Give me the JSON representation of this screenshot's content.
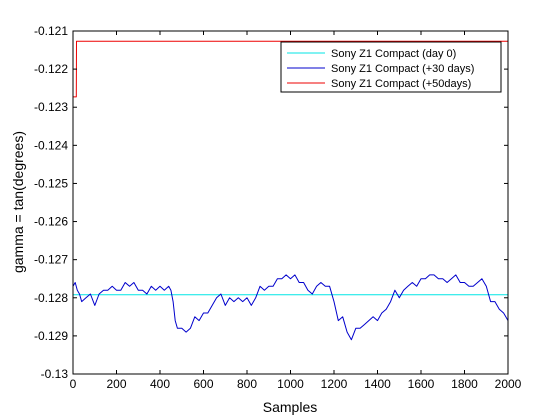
{
  "chart_data": {
    "type": "line",
    "title": "",
    "xlabel": "Samples",
    "ylabel": "gamma = tan(degrees)",
    "xlim": [
      0,
      2000
    ],
    "ylim": [
      -0.13,
      -0.121
    ],
    "x_ticks": [
      0,
      200,
      400,
      600,
      800,
      1000,
      1200,
      1400,
      1600,
      1800,
      2000
    ],
    "y_ticks": [
      -0.13,
      -0.129,
      -0.128,
      -0.127,
      -0.126,
      -0.125,
      -0.124,
      -0.123,
      -0.122,
      -0.121
    ],
    "x_tick_labels": [
      "0",
      "200",
      "400",
      "600",
      "800",
      "1000",
      "1200",
      "1400",
      "1600",
      "1800",
      "2000"
    ],
    "y_tick_labels": [
      "-0.13",
      "-0.129",
      "-0.128",
      "-0.127",
      "-0.126",
      "-0.125",
      "-0.124",
      "-0.123",
      "-0.122",
      "-0.121"
    ],
    "grid": false,
    "legend_position": "top-right",
    "series": [
      {
        "name": "Sony Z1 Compact (day 0)",
        "color": "#00e5e5",
        "x": [
          0,
          2000
        ],
        "y": [
          -0.12792,
          -0.12792
        ]
      },
      {
        "name": "Sony Z1 Compact (+30 days)",
        "color": "#0000cc",
        "x": [
          0,
          10,
          20,
          30,
          40,
          60,
          80,
          100,
          120,
          140,
          160,
          180,
          200,
          220,
          240,
          260,
          280,
          300,
          320,
          340,
          360,
          380,
          400,
          420,
          440,
          450,
          460,
          470,
          480,
          500,
          520,
          540,
          560,
          580,
          600,
          620,
          640,
          660,
          680,
          700,
          720,
          740,
          760,
          780,
          800,
          820,
          840,
          860,
          880,
          900,
          920,
          940,
          960,
          980,
          1000,
          1020,
          1040,
          1060,
          1080,
          1100,
          1120,
          1140,
          1160,
          1180,
          1200,
          1220,
          1240,
          1260,
          1280,
          1300,
          1320,
          1340,
          1360,
          1380,
          1400,
          1420,
          1440,
          1460,
          1480,
          1500,
          1520,
          1540,
          1560,
          1580,
          1600,
          1620,
          1640,
          1660,
          1680,
          1700,
          1720,
          1740,
          1760,
          1780,
          1800,
          1820,
          1840,
          1860,
          1880,
          1900,
          1920,
          1940,
          1960,
          1980,
          1990,
          2000
        ],
        "y": [
          -0.1277,
          -0.1276,
          -0.1278,
          -0.1279,
          -0.1281,
          -0.128,
          -0.1279,
          -0.1282,
          -0.1279,
          -0.1278,
          -0.1278,
          -0.1277,
          -0.1278,
          -0.1278,
          -0.1276,
          -0.1277,
          -0.1276,
          -0.1278,
          -0.1278,
          -0.1279,
          -0.1277,
          -0.1278,
          -0.1277,
          -0.1278,
          -0.1277,
          -0.1278,
          -0.1281,
          -0.1286,
          -0.1288,
          -0.1288,
          -0.1289,
          -0.1288,
          -0.1285,
          -0.1286,
          -0.1284,
          -0.1284,
          -0.1282,
          -0.128,
          -0.1279,
          -0.1282,
          -0.128,
          -0.1281,
          -0.128,
          -0.1281,
          -0.128,
          -0.1282,
          -0.128,
          -0.1277,
          -0.1278,
          -0.1277,
          -0.1277,
          -0.1275,
          -0.1275,
          -0.1274,
          -0.1275,
          -0.1274,
          -0.1276,
          -0.1276,
          -0.1278,
          -0.1279,
          -0.1277,
          -0.1276,
          -0.1277,
          -0.1277,
          -0.1281,
          -0.1286,
          -0.1285,
          -0.1289,
          -0.1291,
          -0.1288,
          -0.1288,
          -0.1287,
          -0.1286,
          -0.1285,
          -0.1286,
          -0.1284,
          -0.1283,
          -0.1281,
          -0.1278,
          -0.128,
          -0.1278,
          -0.1277,
          -0.1276,
          -0.1277,
          -0.1275,
          -0.1275,
          -0.1274,
          -0.1274,
          -0.1275,
          -0.1275,
          -0.1276,
          -0.1275,
          -0.1274,
          -0.1276,
          -0.1276,
          -0.1277,
          -0.1277,
          -0.1276,
          -0.1275,
          -0.1277,
          -0.1281,
          -0.1281,
          -0.1283,
          -0.1284,
          -0.1285,
          -0.1286
        ]
      },
      {
        "name": "Sony Z1 Compact (+50days)",
        "color": "#ee0000",
        "x": [
          0,
          15,
          16,
          20,
          2000
        ],
        "y": [
          -0.12273,
          -0.12273,
          -0.12127,
          -0.12127,
          -0.12127
        ]
      }
    ]
  }
}
